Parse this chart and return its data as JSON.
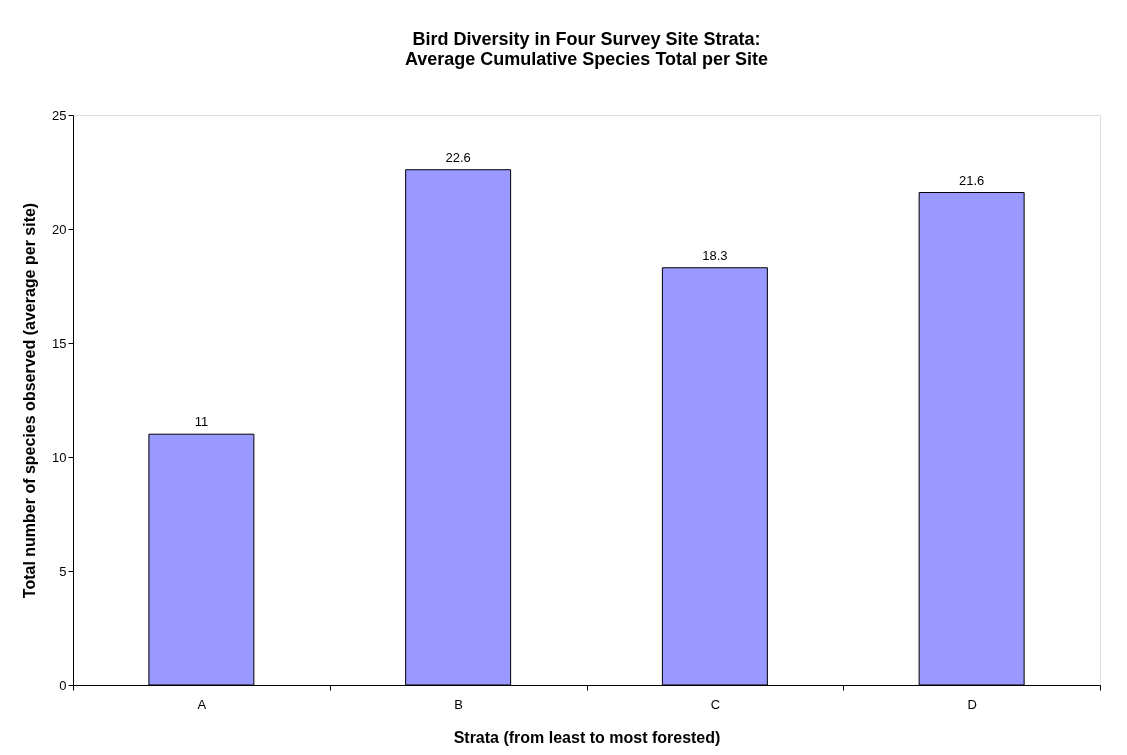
{
  "chart_data": {
    "type": "bar",
    "title": [
      "Bird Diversity in Four Survey Site Strata:",
      "Average Cumulative Species Total per Site"
    ],
    "xlabel": "Strata (from least to most forested)",
    "ylabel": "Total number of species observed (average per site)",
    "categories": [
      "A",
      "B",
      "C",
      "D"
    ],
    "values": [
      11,
      22.6,
      18.3,
      21.6
    ],
    "color": "#9999ff",
    "ylim": [
      0,
      25
    ],
    "yticks": [
      0,
      5,
      10,
      15,
      20,
      25
    ],
    "data_labels": true,
    "grid": false
  }
}
